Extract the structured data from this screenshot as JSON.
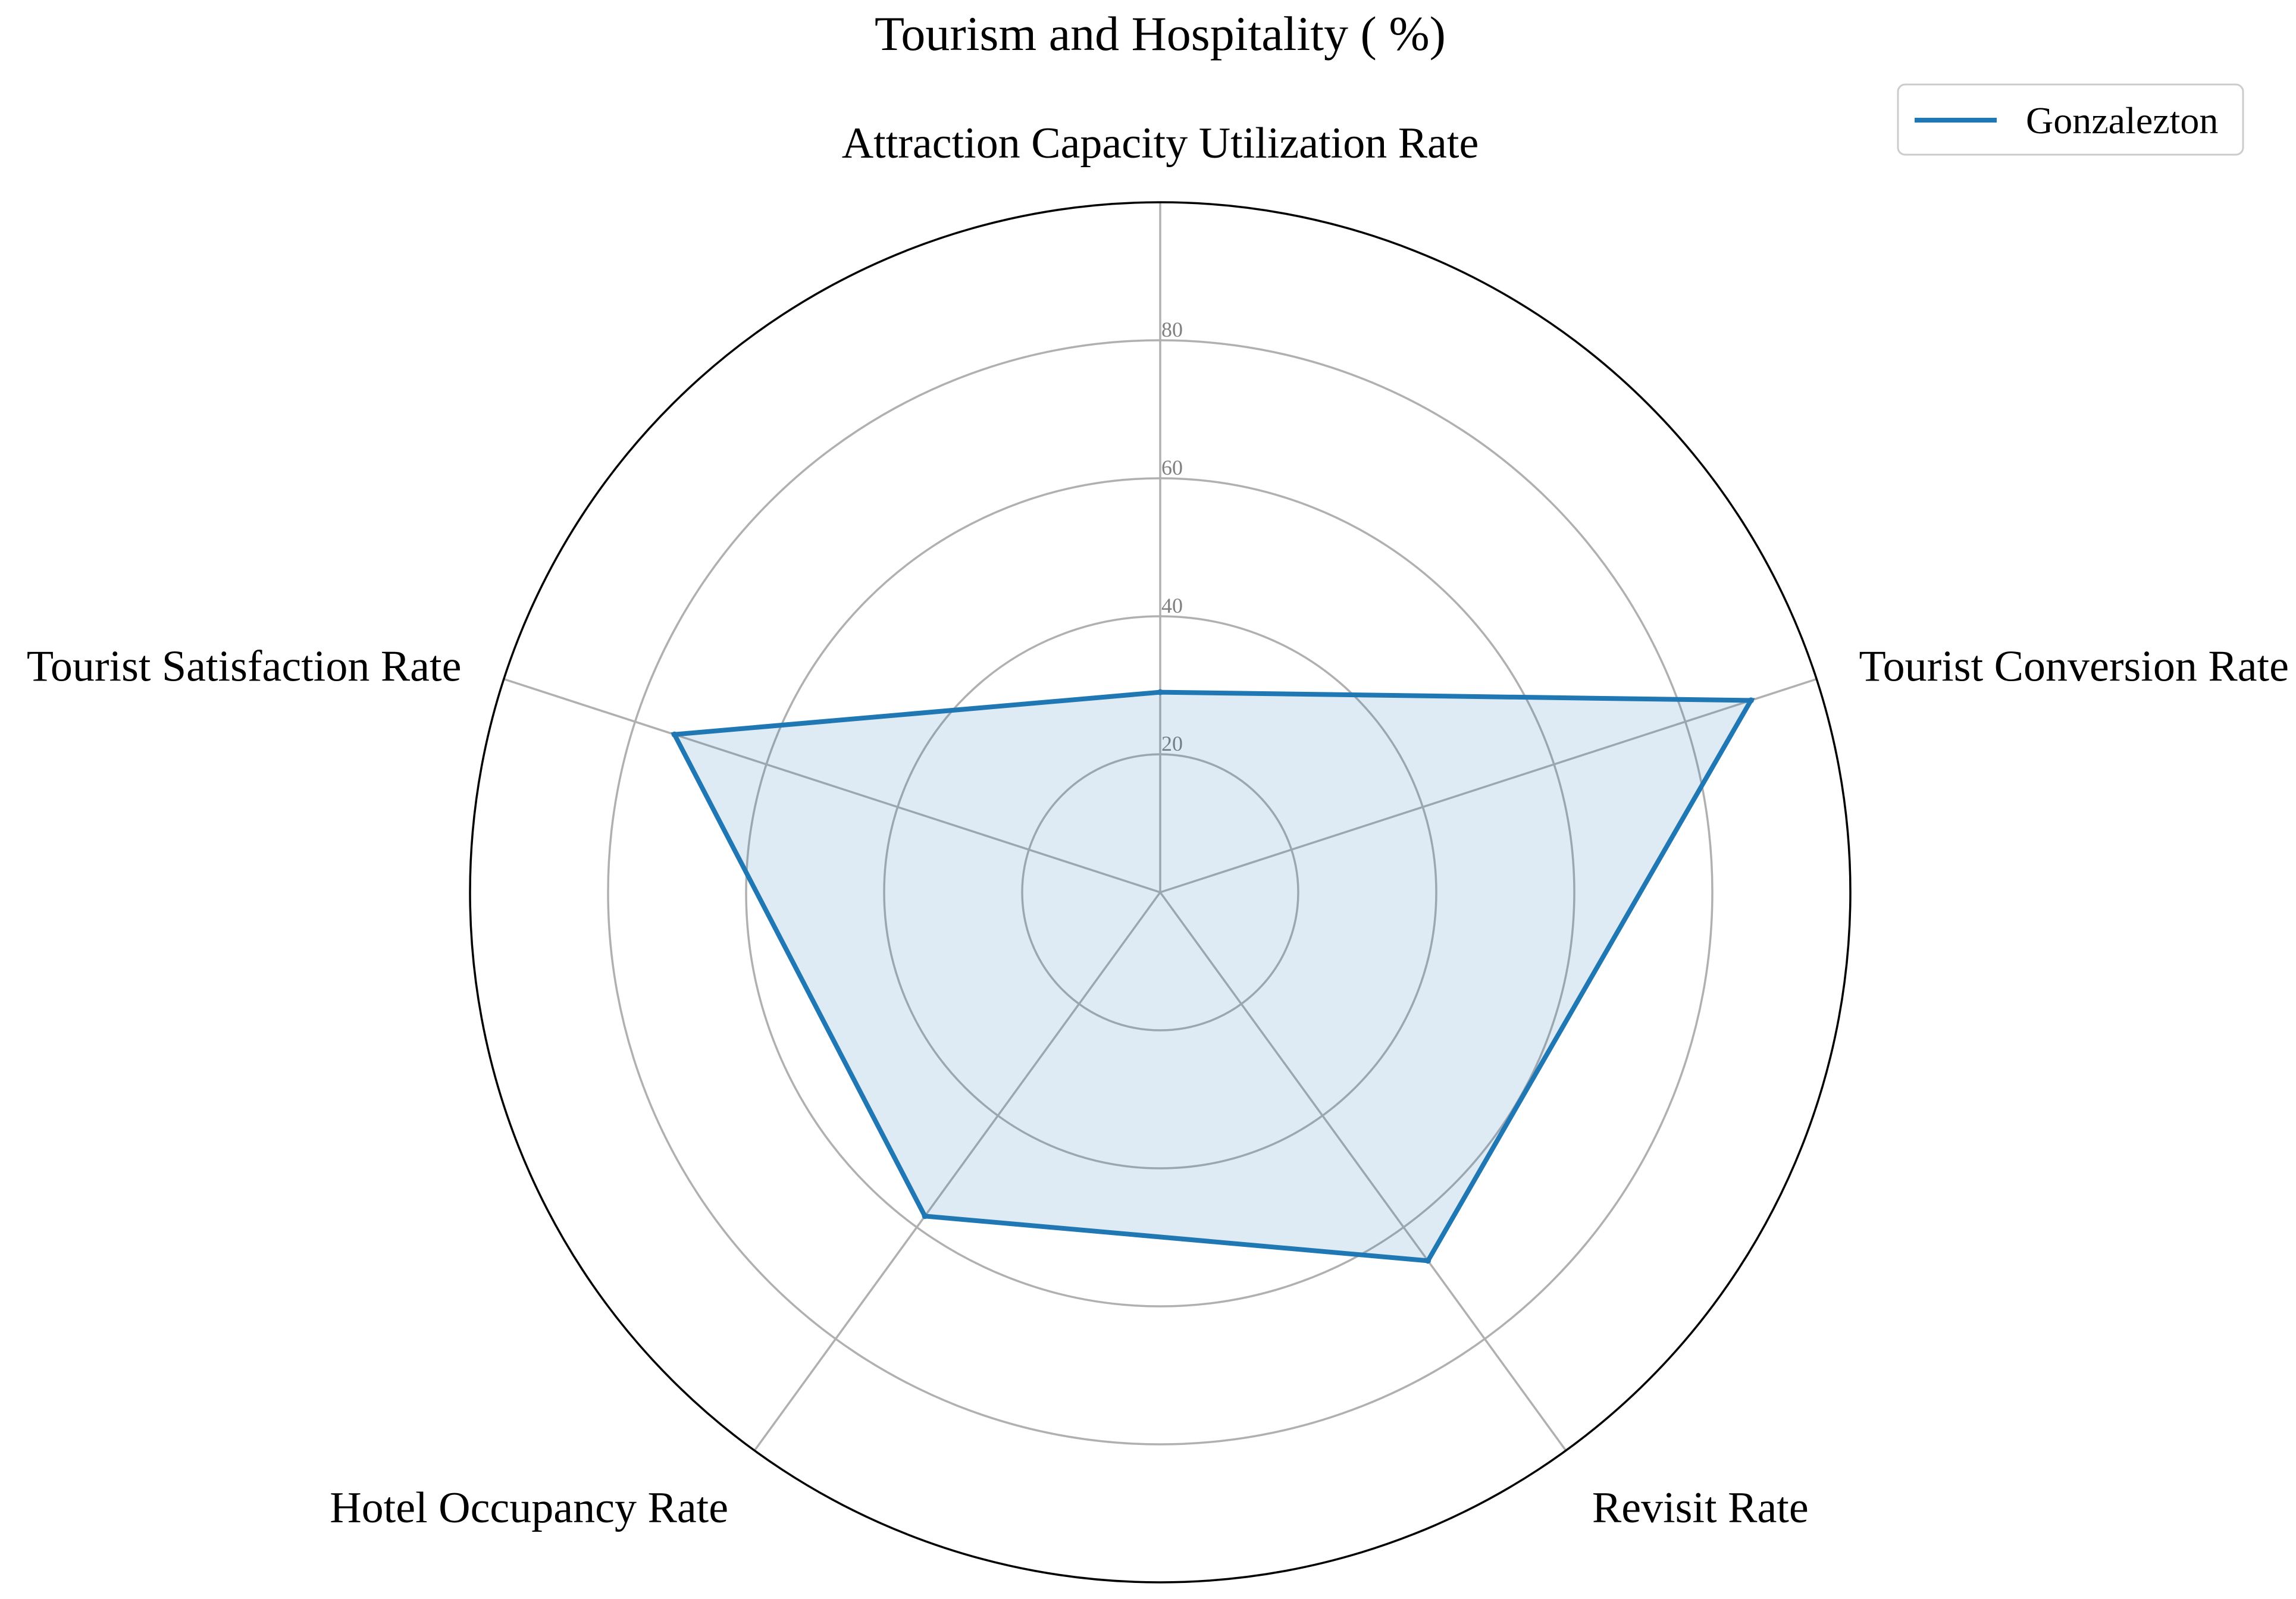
{
  "chart_data": {
    "type": "radar",
    "title": "Tourism and Hospitality ( %)",
    "categories": [
      "Attraction Capacity Utilization Rate",
      "Tourist Conversion Rate",
      "Revisit Rate",
      "Hotel Occupancy Rate",
      "Tourist Satisfaction Rate"
    ],
    "series": [
      {
        "name": "Gonzalezton",
        "values": [
          29,
          90,
          66,
          58,
          74
        ],
        "color": "#1f77b4",
        "fill_color": "#1f77b4",
        "fill_opacity": 0.15
      }
    ],
    "rlim": [
      0,
      100
    ],
    "radial_ticks": [
      20,
      40,
      60,
      80
    ],
    "radial_tick_labels": [
      "20",
      "40",
      "60",
      "80"
    ],
    "grid": true,
    "legend_position": "top-right"
  }
}
